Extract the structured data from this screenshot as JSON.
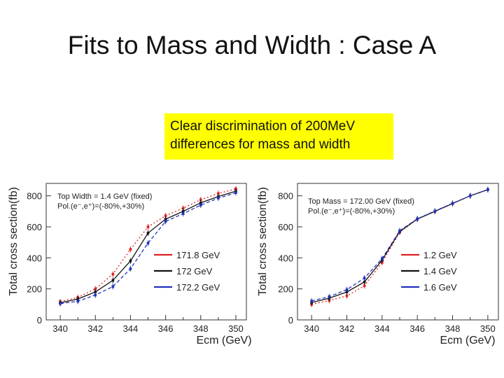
{
  "slide": {
    "title": "Fits to Mass and Width : Case A",
    "callout_lines": [
      "Clear discrimination of 200MeV",
      "differences for mass and width"
    ]
  },
  "chart_data": [
    {
      "type": "line",
      "title": "",
      "xlabel": "Ecm (GeV)",
      "ylabel": "Total cross section(fb)",
      "xlim": [
        339.2,
        350.6
      ],
      "ylim": [
        0,
        880
      ],
      "xticks": [
        340,
        342,
        344,
        346,
        348,
        350
      ],
      "yticks": [
        0,
        200,
        400,
        600,
        800
      ],
      "annotation_lines": [
        "Top Width = 1.4 GeV (fixed)",
        "Pol.(e⁻,e⁺)=(-80%,+30%)"
      ],
      "legend_position": "center-right",
      "x": [
        340,
        341,
        342,
        343,
        344,
        345,
        346,
        347,
        348,
        349,
        350
      ],
      "series": [
        {
          "name": "171.8 GeV",
          "color": "#dd2222",
          "dash": "dotted",
          "values": [
            118,
            145,
            200,
            295,
            455,
            600,
            672,
            720,
            775,
            815,
            845
          ]
        },
        {
          "name": "172 GeV",
          "color": "#111111",
          "dash": "solid",
          "values": [
            110,
            135,
            180,
            255,
            380,
            560,
            650,
            700,
            755,
            795,
            830
          ]
        },
        {
          "name": "172.2 GeV",
          "color": "#2233bb",
          "dash": "dashed",
          "values": [
            105,
            120,
            160,
            215,
            330,
            495,
            635,
            685,
            740,
            785,
            820
          ]
        }
      ]
    },
    {
      "type": "line",
      "title": "",
      "xlabel": "Ecm (GeV)",
      "ylabel": "Total cross section(fb)",
      "xlim": [
        339.2,
        350.6
      ],
      "ylim": [
        0,
        880
      ],
      "xticks": [
        340,
        342,
        344,
        346,
        348,
        350
      ],
      "yticks": [
        0,
        200,
        400,
        600,
        800
      ],
      "annotation_lines": [
        "Top Mass = 172.00 GeV (fixed)",
        "Pol.(e⁻,e⁺)=(-80%,+30%)"
      ],
      "legend_position": "center-right",
      "x": [
        340,
        341,
        342,
        343,
        344,
        345,
        346,
        347,
        348,
        349,
        350
      ],
      "series": [
        {
          "name": "1.2 GeV",
          "color": "#dd2222",
          "dash": "dotted",
          "values": [
            100,
            125,
            155,
            220,
            370,
            565,
            650,
            700,
            750,
            800,
            840
          ]
        },
        {
          "name": "1.4 GeV",
          "color": "#111111",
          "dash": "solid",
          "values": [
            112,
            140,
            180,
            245,
            385,
            570,
            650,
            700,
            750,
            800,
            840
          ]
        },
        {
          "name": "1.6 GeV",
          "color": "#2233bb",
          "dash": "dashed",
          "values": [
            122,
            150,
            195,
            270,
            395,
            575,
            652,
            702,
            752,
            800,
            840
          ]
        }
      ]
    }
  ]
}
